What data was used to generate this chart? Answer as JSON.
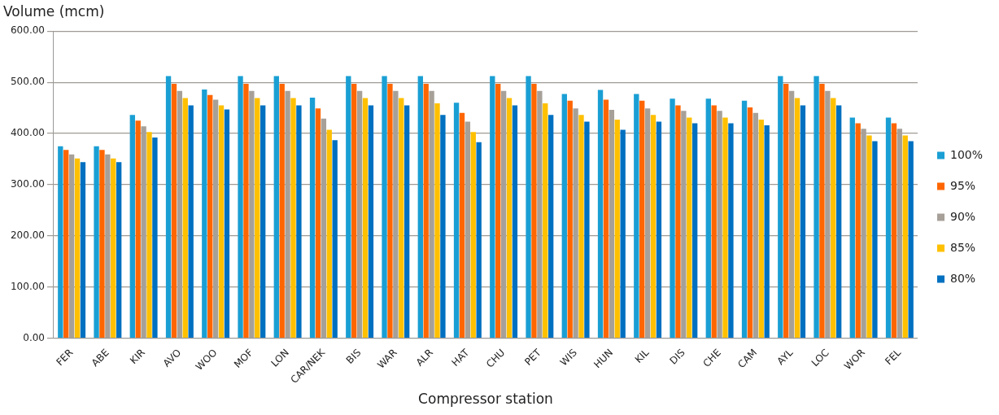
{
  "chart_data": {
    "type": "bar",
    "ylabel": "Volume (mcm)",
    "xlabel": "Compressor station",
    "categories": [
      "FER",
      "ABE",
      "KIR",
      "AVO",
      "WOO",
      "MOF",
      "LON",
      "CAR/NEK",
      "BIS",
      "WAR",
      "ALR",
      "HAT",
      "CHU",
      "PET",
      "WIS",
      "HUN",
      "KIL",
      "DIS",
      "CHE",
      "CAM",
      "AYL",
      "LOC",
      "WOR",
      "FEL"
    ],
    "series": [
      {
        "name": "100%",
        "color": "#1a9fd4",
        "values": [
          375,
          375,
          436,
          512,
          486,
          512,
          512,
          470,
          512,
          512,
          512,
          460,
          512,
          512,
          477,
          485,
          477,
          468,
          468,
          464,
          512,
          512,
          431,
          431
        ]
      },
      {
        "name": "95%",
        "color": "#ff6600",
        "values": [
          368,
          368,
          425,
          497,
          475,
          497,
          497,
          449,
          497,
          497,
          497,
          440,
          497,
          497,
          464,
          466,
          464,
          455,
          455,
          451,
          497,
          497,
          420,
          420
        ]
      },
      {
        "name": "90%",
        "color": "#a6a098",
        "values": [
          359,
          359,
          414,
          483,
          466,
          483,
          483,
          429,
          483,
          483,
          483,
          423,
          483,
          483,
          449,
          446,
          449,
          444,
          444,
          440,
          483,
          483,
          409,
          409
        ]
      },
      {
        "name": "85%",
        "color": "#ffc000",
        "values": [
          351,
          351,
          403,
          469,
          455,
          469,
          469,
          407,
          469,
          469,
          459,
          403,
          469,
          459,
          436,
          427,
          436,
          431,
          431,
          427,
          469,
          469,
          396,
          396
        ]
      },
      {
        "name": "80%",
        "color": "#0070c0",
        "values": [
          344,
          344,
          392,
          455,
          447,
          455,
          455,
          387,
          455,
          455,
          436,
          383,
          455,
          436,
          423,
          407,
          423,
          420,
          420,
          416,
          455,
          455,
          385,
          385
        ]
      }
    ],
    "ylim": [
      0,
      600
    ],
    "yticks": [
      {
        "value": 0,
        "label": "0.00"
      },
      {
        "value": 100,
        "label": "100.00"
      },
      {
        "value": 200,
        "label": "200.00"
      },
      {
        "value": 300,
        "label": "300.00"
      },
      {
        "value": 400,
        "label": "400.00"
      },
      {
        "value": 500,
        "label": "500.00"
      },
      {
        "value": 600,
        "label": "600.00"
      }
    ],
    "grid": "y",
    "legend": "right"
  }
}
